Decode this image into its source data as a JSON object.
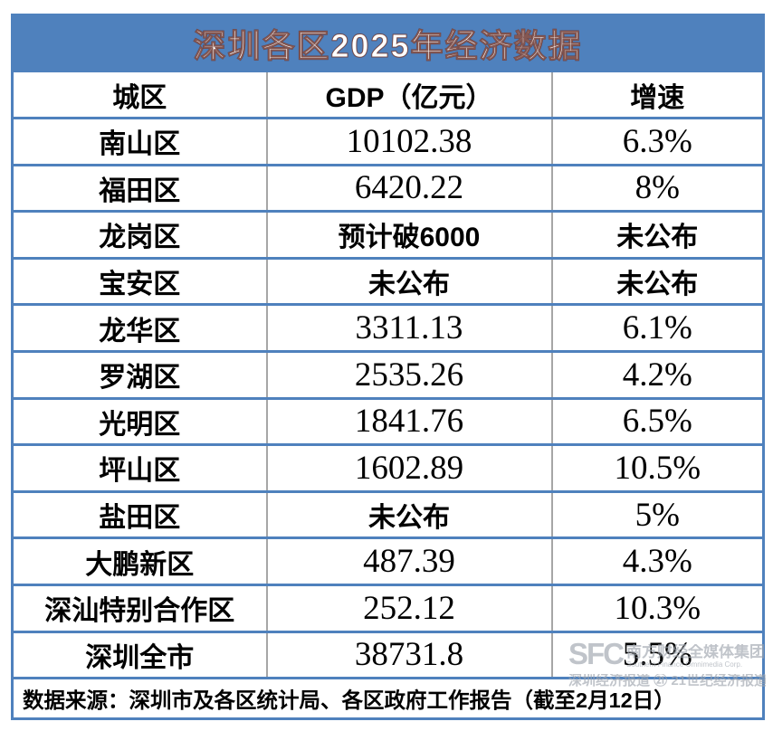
{
  "title": "深圳各区2025年经济数据",
  "columns": [
    "城区",
    "GDP（亿元）",
    "增速"
  ],
  "rows": [
    {
      "district": "南山区",
      "gdp": "10102.38",
      "growth": "6.3%"
    },
    {
      "district": "福田区",
      "gdp": "6420.22",
      "growth": "8%"
    },
    {
      "district": "龙岗区",
      "gdp": "预计破6000",
      "growth": "未公布"
    },
    {
      "district": "宝安区",
      "gdp": "未公布",
      "growth": "未公布"
    },
    {
      "district": "龙华区",
      "gdp": "3311.13",
      "growth": "6.1%"
    },
    {
      "district": "罗湖区",
      "gdp": "2535.26",
      "growth": "4.2%"
    },
    {
      "district": "光明区",
      "gdp": "1841.76",
      "growth": "6.5%"
    },
    {
      "district": "坪山区",
      "gdp": "1602.89",
      "growth": "10.5%"
    },
    {
      "district": "盐田区",
      "gdp": "未公布",
      "growth": "5%"
    },
    {
      "district": "大鹏新区",
      "gdp": "487.39",
      "growth": "4.3%"
    },
    {
      "district": "深汕特别合作区",
      "gdp": "252.12",
      "growth": "10.3%"
    },
    {
      "district": "深圳全市",
      "gdp": "38731.8",
      "growth": "5.5%"
    }
  ],
  "footer": "数据来源：深圳市及各区统计局、各区政府工作报告（截至2月12日）",
  "watermark": {
    "logo": "SFC",
    "org": "南方财经全媒体集团",
    "org_en": "Southern Finance Omnimedia Corp.",
    "brands": "深圳经济报道 ㉑ 21世纪经济报道"
  },
  "colors": {
    "accent-blue": "#4f81bd",
    "grid-gray": "#a6a6a6",
    "ink": "#000000"
  }
}
